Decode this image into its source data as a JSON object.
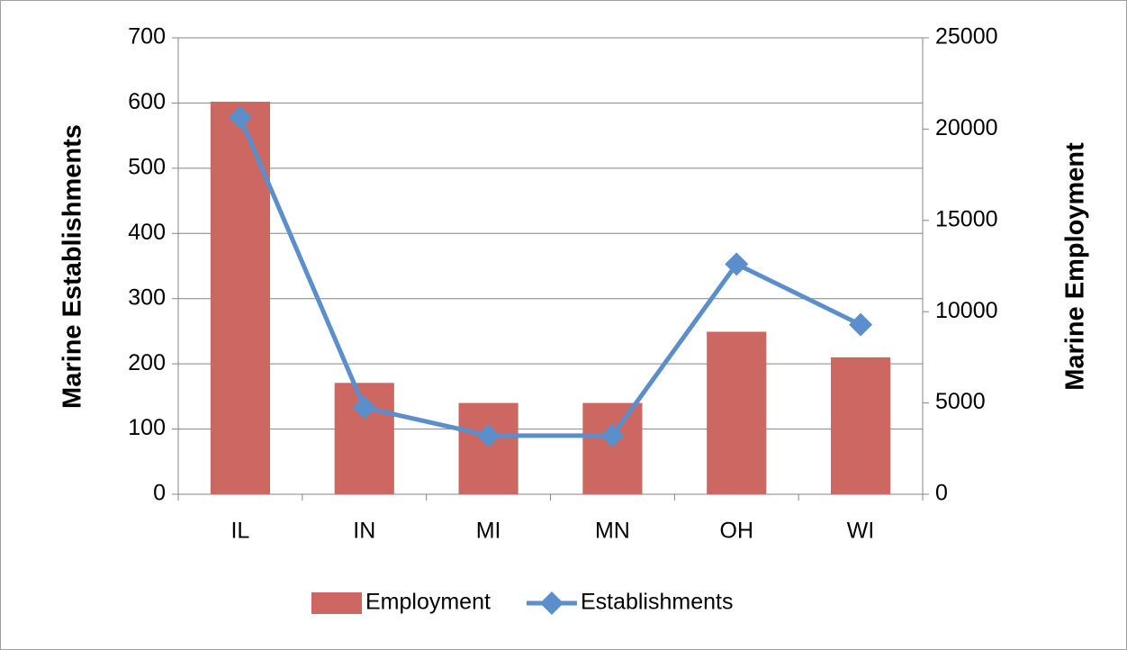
{
  "chart_data": {
    "type": "combo",
    "y_label": "Marine Establishments",
    "y2_label": "Marine Employment",
    "categories": [
      "IL",
      "IN",
      "MI",
      "MN",
      "OH",
      "WI"
    ],
    "series": [
      {
        "name": "Employment",
        "type": "bar",
        "axis": "y2",
        "color": "#cd6761",
        "values": [
          21500,
          6100,
          5000,
          5000,
          8900,
          7500
        ]
      },
      {
        "name": "Establishments",
        "type": "line",
        "axis": "y",
        "color": "#5b8fcc",
        "values": [
          578,
          133,
          90,
          90,
          353,
          260
        ]
      }
    ],
    "ylim": [
      0,
      700
    ],
    "yticks": [
      0,
      100,
      200,
      300,
      400,
      500,
      600,
      700
    ],
    "y2lim": [
      0,
      25000
    ],
    "y2ticks": [
      0,
      5000,
      10000,
      15000,
      20000,
      25000
    ],
    "grid": true,
    "legend": "bottom"
  }
}
